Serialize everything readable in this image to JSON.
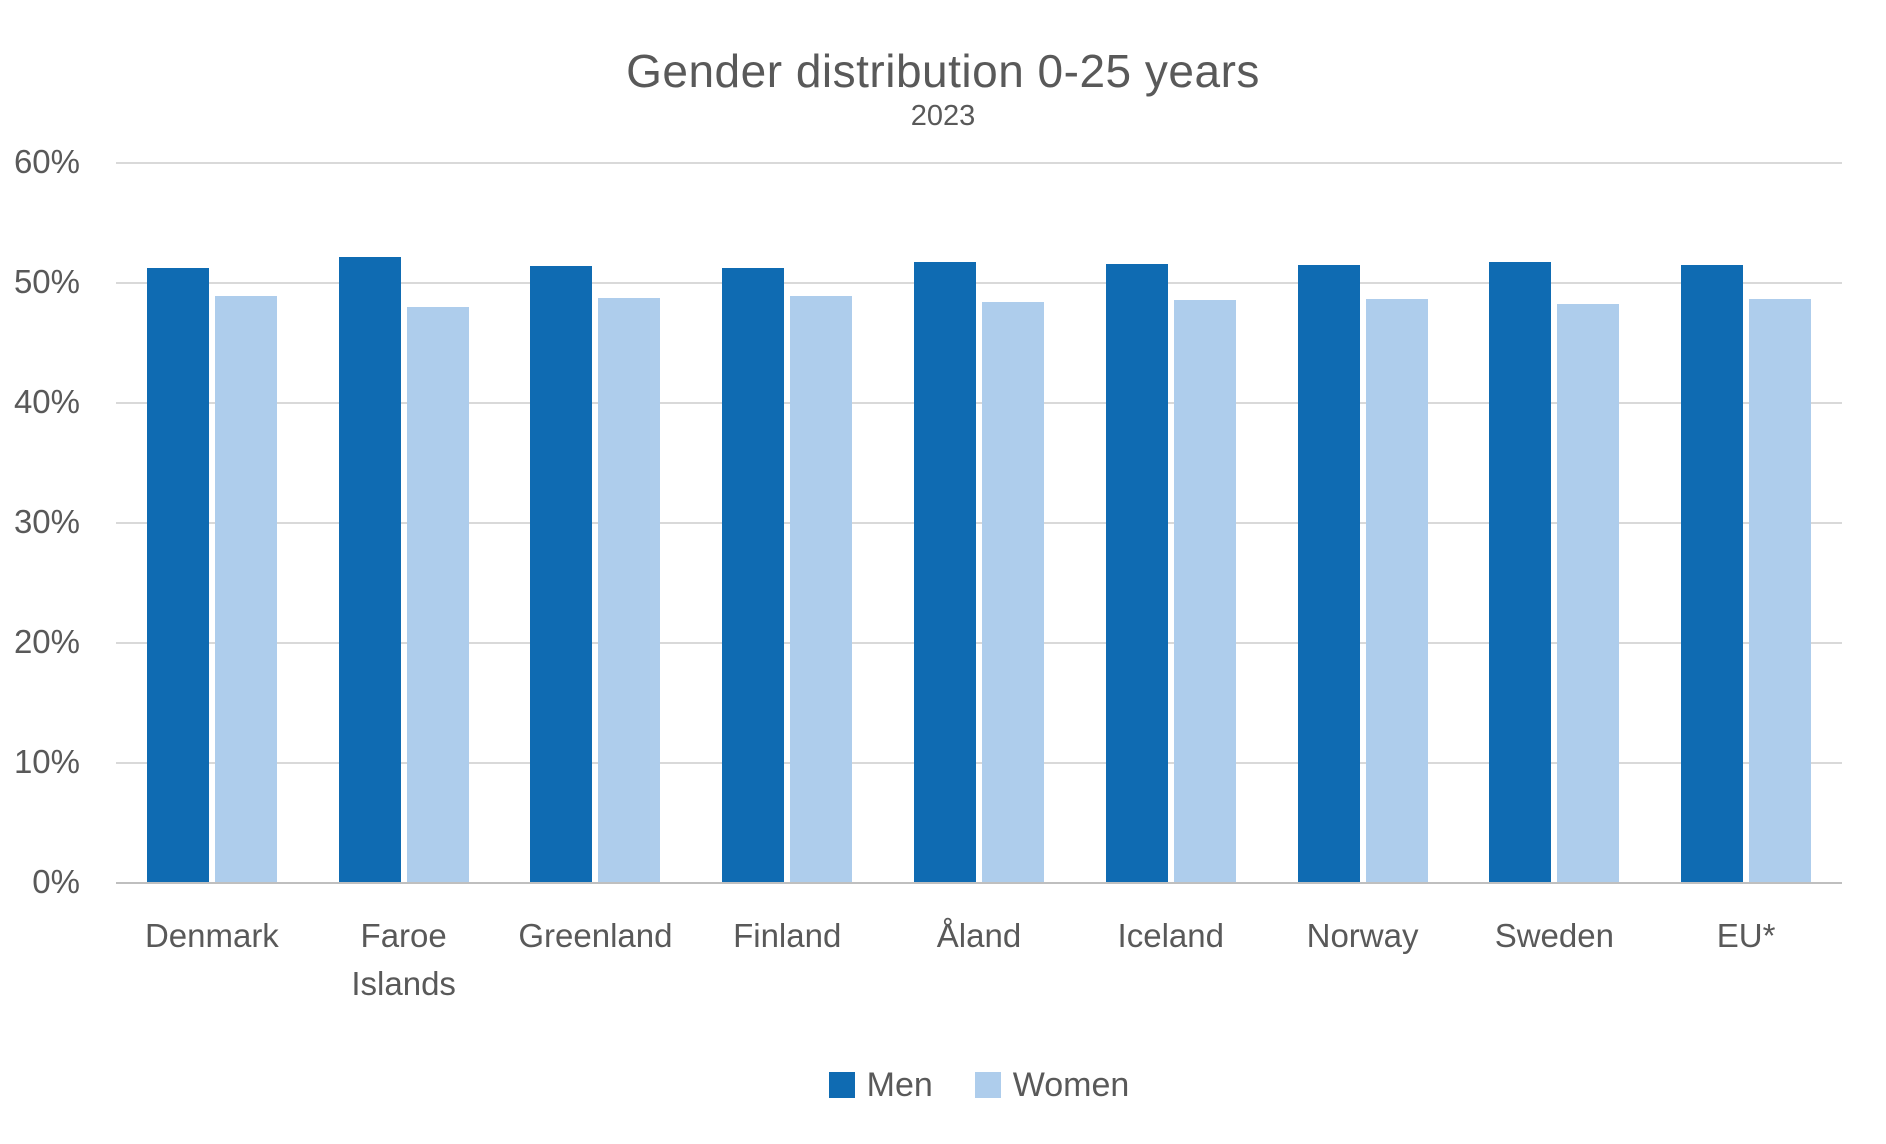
{
  "chart_data": {
    "type": "bar",
    "title": "Gender distribution 0-25 years",
    "subtitle": "2023",
    "categories": [
      "Denmark",
      "Faroe Islands",
      "Greenland",
      "Finland",
      "Åland",
      "Iceland",
      "Norway",
      "Sweden",
      "EU*"
    ],
    "series": [
      {
        "name": "Men",
        "color": "#0f6bb2",
        "values": [
          51.2,
          52.1,
          51.3,
          51.2,
          51.7,
          51.5,
          51.4,
          51.7,
          51.4
        ]
      },
      {
        "name": "Women",
        "color": "#aecdec",
        "values": [
          48.8,
          47.9,
          48.7,
          48.8,
          48.3,
          48.5,
          48.6,
          48.2,
          48.6
        ]
      }
    ],
    "xlabel": "",
    "ylabel": "",
    "ylim": [
      0,
      60
    ],
    "ytick_step": 10,
    "ytick_labels": [
      "0%",
      "10%",
      "20%",
      "30%",
      "40%",
      "50%",
      "60%"
    ],
    "grid": true,
    "legend_position": "bottom"
  },
  "colors": {
    "text": "#595959",
    "gridline": "#d9d9d9",
    "axis_line": "#bfbfbf",
    "background": "#ffffff"
  }
}
